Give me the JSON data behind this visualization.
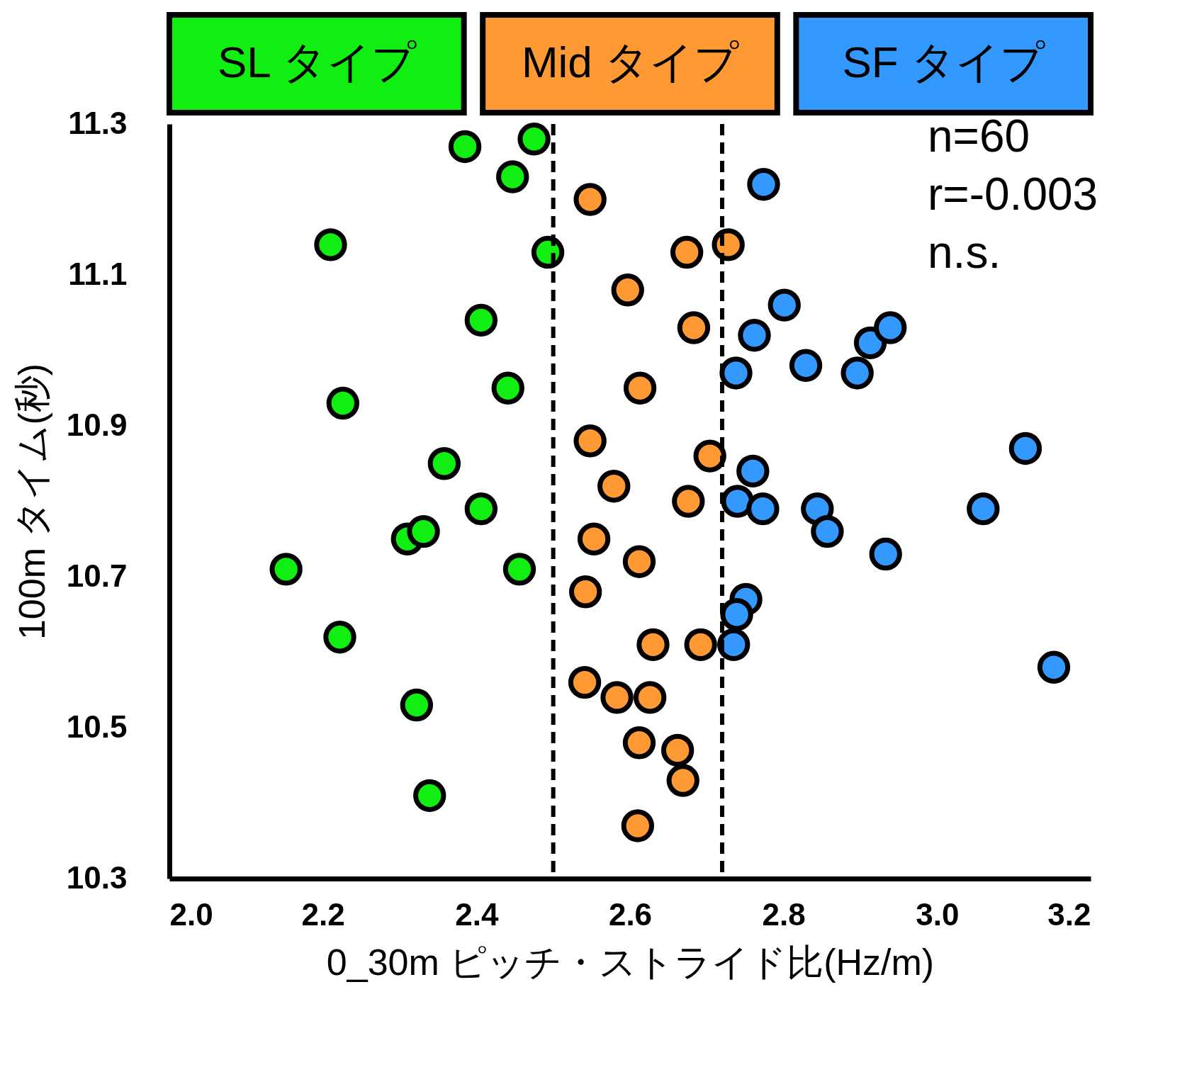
{
  "chart_data": {
    "type": "scatter",
    "xlabel": "0_30m  ピッチ・ストライド比(Hz/m)",
    "ylabel": "100m タイム(秒)",
    "xlim": [
      2.0,
      3.2
    ],
    "ylim": [
      10.3,
      11.3
    ],
    "xticks": [
      {
        "value": 2,
        "label": "2.0"
      },
      2.2,
      2.4,
      2.6,
      2.8,
      {
        "value": 3,
        "label": "3.0"
      },
      3.2
    ],
    "yticks": [
      10.3,
      10.5,
      10.7,
      10.9,
      11.1,
      11.3
    ],
    "legend": "top",
    "grid": false,
    "marker": "circle",
    "series": [
      {
        "name": "SL タイプ",
        "color": "#11ee11",
        "x": [
          2.385,
          2.475,
          2.447,
          2.21,
          2.493,
          2.406,
          2.226,
          2.441,
          2.358,
          2.406,
          2.31,
          2.331,
          2.152,
          2.456,
          2.222,
          2.322,
          2.339
        ],
        "values": [
          11.27,
          11.28,
          11.23,
          11.14,
          11.13,
          11.04,
          10.93,
          10.95,
          10.85,
          10.79,
          10.75,
          10.76,
          10.71,
          10.71,
          10.62,
          10.53,
          10.41
        ]
      },
      {
        "name": "Mid タイプ",
        "color": "#ff9933",
        "x": [
          2.548,
          2.674,
          2.728,
          2.597,
          2.683,
          2.613,
          2.548,
          2.704,
          2.579,
          2.676,
          2.553,
          2.612,
          2.542,
          2.63,
          2.692,
          2.541,
          2.583,
          2.626,
          2.612,
          2.662,
          2.669,
          2.61
        ],
        "values": [
          11.2,
          11.13,
          11.14,
          11.08,
          11.03,
          10.95,
          10.88,
          10.86,
          10.82,
          10.8,
          10.75,
          10.72,
          10.68,
          10.61,
          10.61,
          10.56,
          10.54,
          10.54,
          10.48,
          10.47,
          10.43,
          10.37
        ]
      },
      {
        "name": "SF タイプ",
        "color": "#3399ff",
        "x": [
          2.774,
          2.801,
          2.762,
          2.738,
          2.829,
          2.896,
          2.913,
          2.939,
          3.115,
          2.76,
          2.74,
          2.773,
          2.844,
          2.857,
          3.06,
          2.933,
          2.751,
          2.739,
          2.735,
          3.152
        ],
        "values": [
          11.22,
          11.06,
          11.02,
          10.97,
          10.98,
          10.97,
          11.01,
          11.03,
          10.87,
          10.84,
          10.8,
          10.79,
          10.79,
          10.76,
          10.79,
          10.73,
          10.67,
          10.65,
          10.61,
          10.58
        ]
      }
    ],
    "ref_lines": [
      {
        "axis": "x",
        "value": 2.5,
        "color": "#000000",
        "line_style": "dashed"
      },
      {
        "axis": "x",
        "value": 2.72,
        "color": "#000000",
        "line_style": "dashed"
      }
    ],
    "annotations": [
      "n=60",
      "r=-0.003",
      "n.s."
    ]
  }
}
